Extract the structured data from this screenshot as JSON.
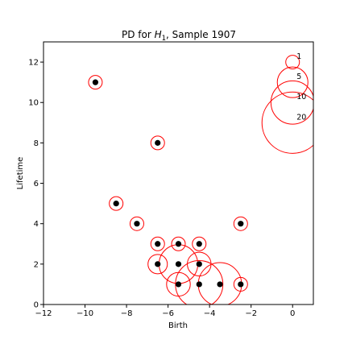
{
  "chart_data": {
    "type": "scatter",
    "title_prefix": "PD for ",
    "title_symbol": "H",
    "title_subscript": "1",
    "title_suffix": ", Sample 1907",
    "xlabel": "Birth",
    "ylabel": "Lifetime",
    "xlim": [
      -12,
      1
    ],
    "ylim": [
      0,
      13
    ],
    "xticks": [
      -12,
      -10,
      -8,
      -6,
      -4,
      -2,
      0
    ],
    "yticks": [
      0,
      2,
      4,
      6,
      8,
      10,
      12
    ],
    "xtick_labels": [
      "−12",
      "−10",
      "−8",
      "−6",
      "−4",
      "−2",
      "0"
    ],
    "ytick_labels": [
      "0",
      "2",
      "4",
      "6",
      "8",
      "10",
      "12"
    ],
    "grid": false,
    "point_color": "#000000",
    "circle_color": "#ff0000",
    "points": [
      {
        "x": -9.5,
        "y": 11,
        "count": 1
      },
      {
        "x": -6.5,
        "y": 8,
        "count": 1
      },
      {
        "x": -8.5,
        "y": 5,
        "count": 1
      },
      {
        "x": -7.5,
        "y": 4,
        "count": 1
      },
      {
        "x": -2.5,
        "y": 4,
        "count": 1
      },
      {
        "x": -6.5,
        "y": 3,
        "count": 1
      },
      {
        "x": -5.5,
        "y": 3,
        "count": 1
      },
      {
        "x": -4.5,
        "y": 3,
        "count": 1
      },
      {
        "x": -6.5,
        "y": 2,
        "count": 2
      },
      {
        "x": -5.5,
        "y": 2,
        "count": 8
      },
      {
        "x": -4.5,
        "y": 2,
        "count": 3
      },
      {
        "x": -5.5,
        "y": 1,
        "count": 3
      },
      {
        "x": -4.5,
        "y": 1,
        "count": 12
      },
      {
        "x": -3.5,
        "y": 1,
        "count": 10
      },
      {
        "x": -2.5,
        "y": 1,
        "count": 1
      }
    ],
    "legend": {
      "placement": "top-right",
      "entries": [
        {
          "label": "1",
          "count": 1,
          "y": 12
        },
        {
          "label": "5",
          "count": 5,
          "y": 11
        },
        {
          "label": "10",
          "count": 10,
          "y": 10
        },
        {
          "label": "20",
          "count": 20,
          "y": 9
        }
      ]
    }
  }
}
